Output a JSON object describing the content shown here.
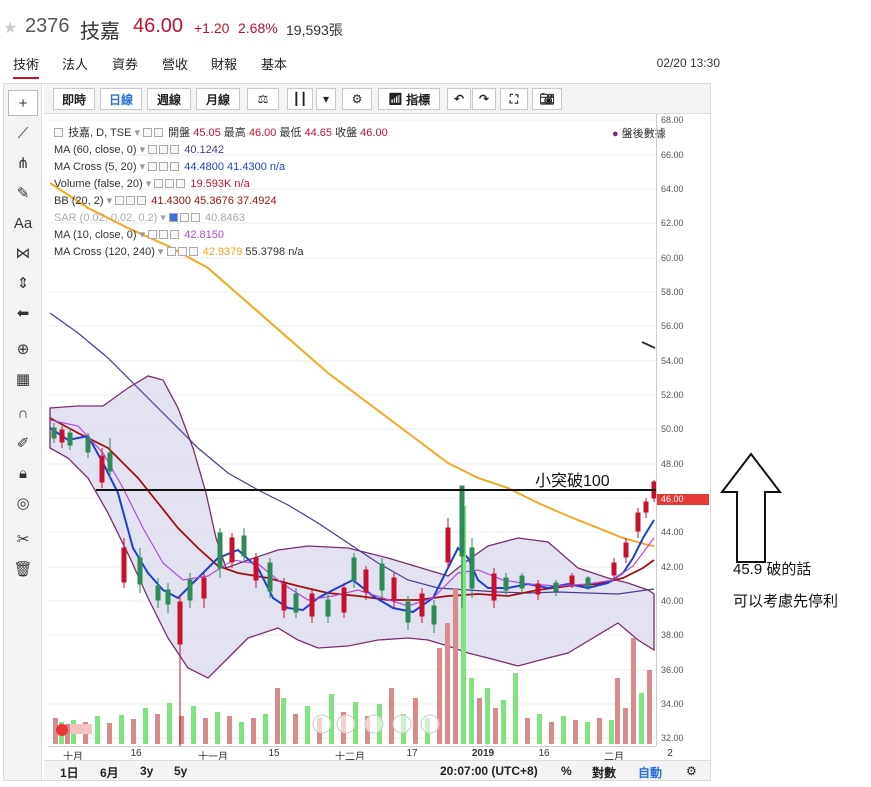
{
  "header": {
    "code": "2376",
    "name": "技嘉",
    "price": "46.00",
    "change": "+1.20",
    "percent": "2.68%",
    "volume": "19,593張"
  },
  "tabs": [
    "技術",
    "法人",
    "資券",
    "營收",
    "財報",
    "基本"
  ],
  "datetime": "02/20 13:30",
  "toolbar": {
    "intraday": "即時",
    "daily": "日線",
    "weekly": "週線",
    "monthly": "月線",
    "indicators": "指標"
  },
  "legend": {
    "main": "技嘉, D, TSE",
    "open_label": "開盤",
    "open": "45.05",
    "high_label": "最高",
    "high": "46.00",
    "low_label": "最低",
    "low": "44.65",
    "close_label": "收盤",
    "close": "46.00",
    "after_hours": "盤後數據",
    "rows": [
      {
        "name": "MA (60, close, 0)",
        "vals": "40.1242"
      },
      {
        "name": "MA Cross (5, 20)",
        "vals": "44.4800 41.4300 n/a"
      },
      {
        "name": "Volume (false, 20)",
        "vals": "19.593K n/a"
      },
      {
        "name": "BB (20, 2)",
        "vals": "41.4300 45.3676 37.4924"
      },
      {
        "name": "SAR (0.02, 0.02, 0.2)",
        "vals": "40.8463"
      },
      {
        "name": "MA (10, close, 0)",
        "vals": "42.8150"
      },
      {
        "name": "MA Cross (120, 240)",
        "vals": "42.9379 55.3798 n/a"
      }
    ]
  },
  "yaxis": {
    "ticks": [
      "68.00",
      "66.00",
      "64.00",
      "62.00",
      "60.00",
      "58.00",
      "56.00",
      "54.00",
      "52.00",
      "50.00",
      "48.00",
      "46.00",
      "44.00",
      "42.00",
      "40.00",
      "38.00",
      "36.00",
      "34.00",
      "32.00"
    ],
    "current": "46.00"
  },
  "xaxis": {
    "ticks": [
      "十月",
      "16",
      "十一月",
      "15",
      "十二月",
      "17",
      "2019",
      "16",
      "二月",
      "2"
    ]
  },
  "bottom": {
    "r1": "1日",
    "r2": "6月",
    "r3": "3y",
    "r4": "5y",
    "time": "20:07:00 (UTC+8)",
    "pct": "%",
    "log": "對數",
    "auto": "自動"
  },
  "annotations": {
    "breakout": "小突破100",
    "note1": "45.9 破的話",
    "note2": "可以考慮先停利"
  },
  "colors": {
    "up": "#c8102e",
    "down": "#2e8b57",
    "volume_up": "#d98a8a",
    "volume_down": "#7fe37f",
    "ma_orange": "#f5a623",
    "ma_purple": "#4b3b8f",
    "bb_fill": "#d9d8ec"
  }
}
